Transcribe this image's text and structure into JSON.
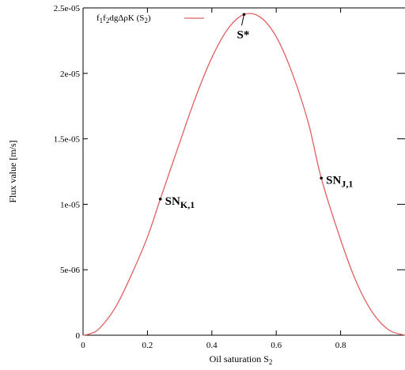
{
  "chart_data": {
    "type": "line",
    "xlabel": "Oil saturation S",
    "xlabel_sub": "2",
    "ylabel": "Flux value [m/s]",
    "xlim": [
      0,
      1
    ],
    "ylim": [
      0,
      2.5e-05
    ],
    "x_ticks": [
      0,
      0.2,
      0.4,
      0.6,
      0.8
    ],
    "x_tick_labels": [
      "0",
      "0.2",
      "0.4",
      "0.6",
      "0.8"
    ],
    "y_ticks": [
      0,
      5e-06,
      1e-05,
      1.5e-05,
      2e-05,
      2.5e-05
    ],
    "y_tick_labels": [
      "0",
      "5e-06",
      "1e-05",
      "1.5e-05",
      "2e-05",
      "2.5e-05"
    ],
    "grid": false,
    "legend_position": "top-left",
    "series": [
      {
        "name": "f1f2dgΔρK (S2)",
        "name_parts": [
          {
            "text": "f",
            "sub": false
          },
          {
            "text": "1",
            "sub": true
          },
          {
            "text": "f",
            "sub": false
          },
          {
            "text": "2",
            "sub": true
          },
          {
            "text": "dgΔρK (S",
            "sub": false
          },
          {
            "text": "2",
            "sub": true
          },
          {
            "text": ")",
            "sub": false
          }
        ],
        "color": "#e06060",
        "x": [
          0,
          0.02,
          0.05,
          0.1,
          0.15,
          0.2,
          0.24,
          0.3,
          0.35,
          0.4,
          0.45,
          0.5,
          0.55,
          0.6,
          0.65,
          0.7,
          0.74,
          0.8,
          0.85,
          0.9,
          0.95,
          1.0
        ],
        "y": [
          0,
          1e-07,
          5e-07,
          2.1e-06,
          4.6e-06,
          7.5e-06,
          1.04e-05,
          1.47e-05,
          1.82e-05,
          2.12e-05,
          2.34e-05,
          2.45e-05,
          2.43e-05,
          2.28e-05,
          2e-05,
          1.62e-05,
          1.2e-05,
          7.3e-06,
          4e-06,
          1.7e-06,
          4e-07,
          0
        ]
      }
    ],
    "annotations": [
      {
        "label": "S*",
        "sub": "",
        "x": 0.5,
        "y": 2.45e-05
      },
      {
        "label": "SN",
        "sub": "K,1",
        "x": 0.24,
        "y": 1.04e-05
      },
      {
        "label": "SN",
        "sub": "J,1",
        "x": 0.74,
        "y": 1.2e-05
      }
    ]
  }
}
